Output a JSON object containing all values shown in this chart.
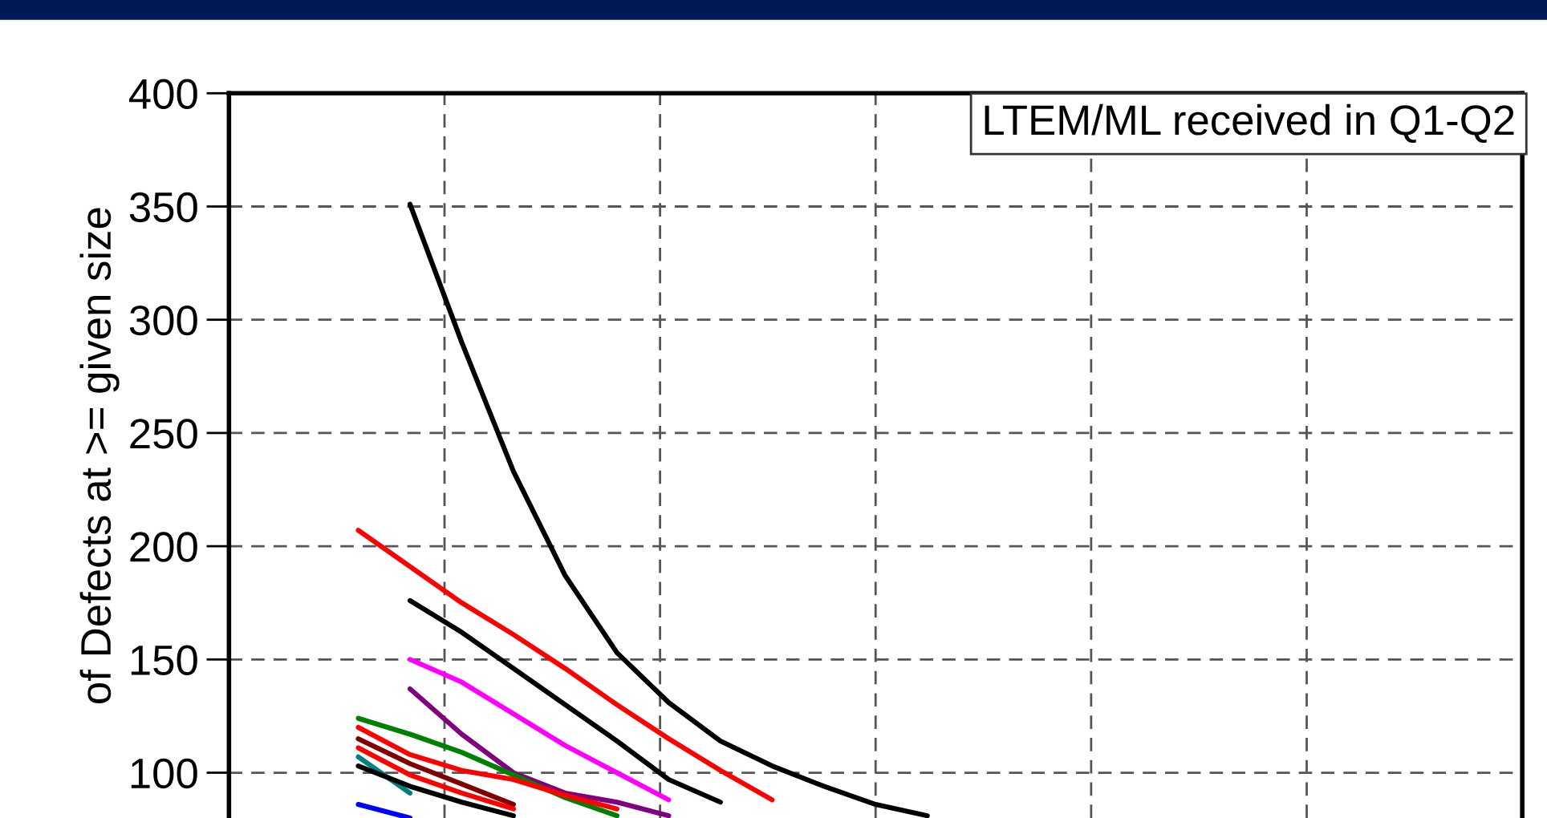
{
  "chart_data": {
    "type": "line",
    "ylabel": "of Defects at >= given size",
    "annotations": [
      "LTEM/ML received in Q1-Q2"
    ],
    "categories": [
      null,
      null,
      null,
      null,
      null,
      null,
      null,
      null,
      null,
      null,
      null,
      null,
      null,
      null,
      null,
      null,
      null,
      null,
      null,
      null,
      null,
      null,
      null,
      null,
      null
    ],
    "ylim": [
      80,
      400
    ],
    "yticks": [
      100,
      150,
      200,
      250,
      300,
      350,
      400
    ],
    "grid": true,
    "line_style": "solid",
    "marker": "none",
    "series": [
      {
        "color": "#000000",
        "values": [
          null,
          null,
          null,
          351,
          290,
          233,
          187,
          153,
          131,
          114,
          103,
          94,
          86,
          81,
          null,
          null,
          null,
          null,
          null,
          null,
          null,
          null,
          null,
          null,
          null
        ]
      },
      {
        "color": "#ff0000",
        "values": [
          null,
          null,
          207,
          191,
          175,
          161,
          146,
          130,
          115,
          101,
          88,
          null,
          null,
          null,
          null,
          null,
          null,
          null,
          null,
          null,
          null,
          null,
          null,
          null,
          null
        ]
      },
      {
        "color": "#000000",
        "values": [
          null,
          null,
          null,
          176,
          162,
          146,
          130,
          114,
          97,
          87,
          null,
          null,
          null,
          null,
          null,
          null,
          null,
          null,
          null,
          null,
          null,
          null,
          null,
          null,
          null
        ]
      },
      {
        "color": "#ff00ff",
        "values": [
          null,
          null,
          null,
          150,
          140,
          126,
          112,
          100,
          88,
          null,
          null,
          null,
          null,
          null,
          null,
          null,
          null,
          null,
          null,
          null,
          null,
          null,
          null,
          null,
          null
        ]
      },
      {
        "color": "#800080",
        "values": [
          null,
          null,
          null,
          137,
          117,
          100,
          91,
          87,
          81,
          null,
          null,
          null,
          null,
          null,
          null,
          null,
          null,
          null,
          null,
          null,
          null,
          null,
          null,
          null,
          null
        ]
      },
      {
        "color": "#008000",
        "values": [
          null,
          null,
          124,
          117,
          109,
          99,
          89,
          81,
          null,
          null,
          null,
          null,
          null,
          null,
          null,
          null,
          null,
          null,
          null,
          null,
          null,
          null,
          null,
          null,
          null
        ]
      },
      {
        "color": "#ff0000",
        "values": [
          null,
          null,
          120,
          108,
          101,
          97,
          90,
          84,
          null,
          null,
          null,
          null,
          null,
          null,
          null,
          null,
          null,
          null,
          null,
          null,
          null,
          null,
          null,
          null,
          null
        ]
      },
      {
        "color": "#800000",
        "values": [
          null,
          null,
          115,
          104,
          95,
          86,
          null,
          null,
          null,
          null,
          null,
          null,
          null,
          null,
          null,
          null,
          null,
          null,
          null,
          null,
          null,
          null,
          null,
          null,
          null
        ]
      },
      {
        "color": "#ff0000",
        "values": [
          null,
          null,
          111,
          99,
          91,
          84,
          null,
          null,
          null,
          null,
          null,
          null,
          null,
          null,
          null,
          null,
          null,
          null,
          null,
          null,
          null,
          null,
          null,
          null,
          null
        ]
      },
      {
        "color": "#008080",
        "values": [
          null,
          null,
          107,
          91,
          null,
          null,
          null,
          null,
          null,
          null,
          null,
          null,
          null,
          null,
          null,
          null,
          null,
          null,
          null,
          null,
          null,
          null,
          null,
          null,
          null
        ]
      },
      {
        "color": "#000000",
        "values": [
          null,
          null,
          103,
          94,
          87,
          81,
          null,
          null,
          null,
          null,
          null,
          null,
          null,
          null,
          null,
          null,
          null,
          null,
          null,
          null,
          null,
          null,
          null,
          null,
          null
        ]
      },
      {
        "color": "#0000ff",
        "values": [
          null,
          null,
          86,
          80,
          null,
          null,
          null,
          null,
          null,
          null,
          null,
          null,
          null,
          null,
          null,
          null,
          null,
          null,
          null,
          null,
          null,
          null,
          null,
          null,
          null
        ]
      }
    ]
  }
}
